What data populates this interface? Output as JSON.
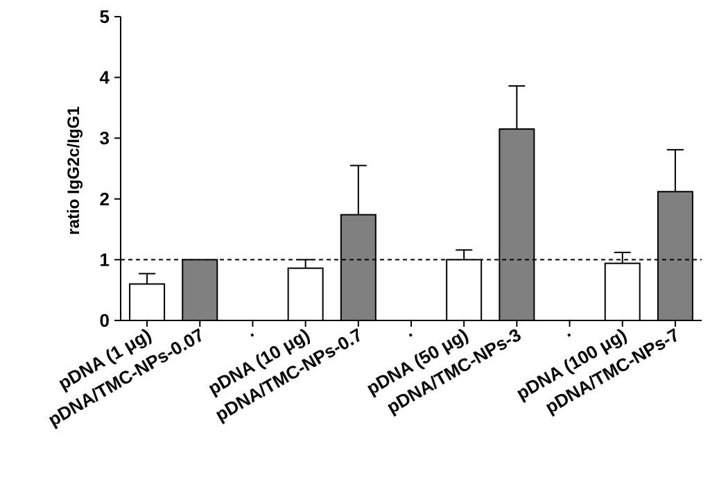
{
  "chart_data": {
    "type": "bar",
    "title": "",
    "xlabel": "",
    "ylabel": "ratio IgG2c/IgG1",
    "ylim": [
      0,
      5
    ],
    "yticks": [
      0,
      1,
      2,
      3,
      4,
      5
    ],
    "grid": false,
    "reference_line": {
      "y": 1,
      "style": "dashed"
    },
    "categories": [
      "pDNA (1 μg)",
      "pDNA/TMC-NPs-0.07",
      "·",
      "pDNA (10 μg)",
      "pDNA/TMC-NPs-0.7",
      "·",
      "pDNA (50 μg)",
      "pDNA/TMC-NPs-3",
      "·",
      "pDNA (100 μg)",
      "pDNA/TMC-NPs-7"
    ],
    "bars": [
      {
        "category_index": 0,
        "value": 0.6,
        "error": 0.17,
        "fill": "#ffffff"
      },
      {
        "category_index": 1,
        "value": 1.0,
        "error": 0.0,
        "fill": "#808080"
      },
      {
        "category_index": 3,
        "value": 0.86,
        "error": 0.14,
        "fill": "#ffffff"
      },
      {
        "category_index": 4,
        "value": 1.74,
        "error": 0.81,
        "fill": "#808080"
      },
      {
        "category_index": 6,
        "value": 1.0,
        "error": 0.16,
        "fill": "#ffffff"
      },
      {
        "category_index": 7,
        "value": 3.15,
        "error": 0.71,
        "fill": "#808080"
      },
      {
        "category_index": 9,
        "value": 0.94,
        "error": 0.18,
        "fill": "#ffffff"
      },
      {
        "category_index": 10,
        "value": 2.12,
        "error": 0.69,
        "fill": "#808080"
      }
    ],
    "colors": {
      "white_bar": "#ffffff",
      "grey_bar": "#808080",
      "stroke": "#000000"
    }
  }
}
